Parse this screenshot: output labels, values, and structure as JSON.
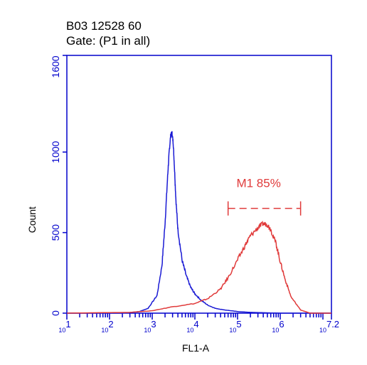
{
  "chart_data": {
    "type": "line",
    "title_lines": [
      "B03 12528 60",
      "Gate: (P1 in all)"
    ],
    "xlabel": "FL1-A",
    "ylabel": "Count",
    "x_scale": "log10",
    "xlim": [
      10,
      15848932
    ],
    "ylim": [
      0,
      1600
    ],
    "y_ticks": [
      0,
      500,
      1000,
      1600
    ],
    "y_tick_labels": [
      "0",
      "500",
      "1000",
      "1600"
    ],
    "x_ticks": [
      10,
      100,
      1000,
      10000,
      100000,
      1000000,
      15848932
    ],
    "x_tick_labels": [
      {
        "base": "10",
        "exp": "1"
      },
      {
        "base": "10",
        "exp": "2"
      },
      {
        "base": "10",
        "exp": "3"
      },
      {
        "base": "10",
        "exp": "4"
      },
      {
        "base": "10",
        "exp": "5"
      },
      {
        "base": "10",
        "exp": "6"
      },
      {
        "base": "10",
        "exp": "7.2"
      }
    ],
    "series": [
      {
        "color": "#1a1ad4",
        "x": [
          10,
          200,
          500,
          800,
          1300,
          1700,
          2000,
          2300,
          2500,
          2700,
          2900,
          3100,
          3300,
          3600,
          4000,
          5000,
          6300,
          8000,
          10000,
          14000,
          20000,
          30000,
          50000,
          100000,
          200000,
          500000,
          1000000,
          15848932
        ],
        "y": [
          0,
          0,
          10,
          30,
          110,
          300,
          560,
          850,
          1000,
          1100,
          1120,
          1060,
          920,
          700,
          520,
          330,
          230,
          160,
          120,
          80,
          50,
          30,
          20,
          10,
          5,
          2,
          0,
          0
        ]
      },
      {
        "color": "#e03a3a",
        "x": [
          10,
          300,
          1000,
          3000,
          10000,
          20000,
          40000,
          60000,
          100000,
          150000,
          200000,
          300000,
          400000,
          500000,
          600000,
          800000,
          1000000,
          1300000,
          1800000,
          3000000,
          5000000,
          15848932
        ],
        "y": [
          0,
          5,
          15,
          40,
          60,
          90,
          150,
          220,
          330,
          420,
          480,
          530,
          555,
          550,
          520,
          430,
          320,
          210,
          100,
          20,
          0,
          0
        ]
      }
    ],
    "gate_marker": {
      "label": "M1 85%",
      "color": "#e03a3a",
      "x_start": 60000,
      "x_end": 3000000,
      "y": 650
    }
  },
  "colors": {
    "axis": "#0000cc",
    "text": "#000000",
    "gate": "#e03a3a"
  }
}
